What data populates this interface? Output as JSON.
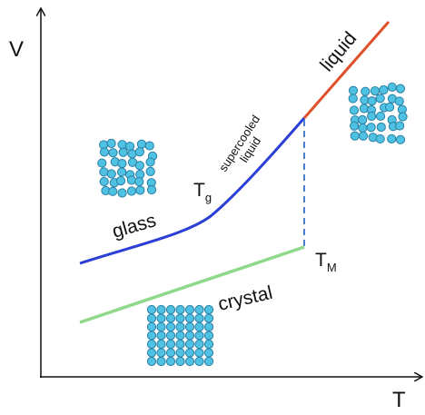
{
  "axes": {
    "y_label": "V",
    "x_label": "T"
  },
  "labels": {
    "liquid": "liquid",
    "supercooled": [
      "supercooled",
      "liquid"
    ],
    "glass": "glass",
    "tg": {
      "main": "T",
      "sub": "g"
    },
    "tm": {
      "main": "T",
      "sub": "M"
    },
    "crystal": "crystal"
  }
}
